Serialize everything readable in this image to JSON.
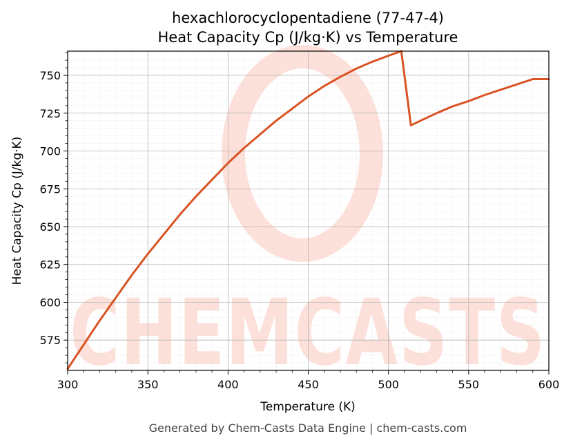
{
  "chart_data": {
    "type": "line",
    "title": "hexachlorocyclopentadiene (77-47-4)",
    "subtitle": "Heat Capacity Cp (J/kg·K) vs Temperature",
    "xlabel": "Temperature (K)",
    "ylabel": "Heat Capacity Cp (J/kg·K)",
    "xlim": [
      300,
      600
    ],
    "ylim": [
      555,
      766
    ],
    "xticks": [
      300,
      350,
      400,
      450,
      500,
      550,
      600
    ],
    "yticks": [
      575,
      600,
      625,
      650,
      675,
      700,
      725,
      750
    ],
    "grid": true,
    "series": [
      {
        "color": "#d95323",
        "x": [
          300,
          310,
          320,
          330,
          340,
          350,
          360,
          370,
          380,
          390,
          400,
          410,
          420,
          430,
          440,
          450,
          460,
          470,
          480,
          490,
          500,
          508,
          514,
          520,
          530,
          540,
          550,
          560,
          570,
          580,
          590,
          600
        ],
        "y": [
          556,
          572,
          588,
          603,
          618,
          632,
          645,
          658,
          670,
          681,
          692,
          702,
          711,
          720,
          728,
          736,
          743,
          749,
          754.5,
          759,
          763,
          766,
          717,
          720,
          725,
          729.5,
          733,
          737,
          740.5,
          744,
          747.5,
          747.5
        ]
      }
    ]
  },
  "watermark": {
    "text": "CHEMCASTS",
    "color": "#fde0d9"
  },
  "footer": "Generated by Chem-Casts Data Engine | chem-casts.com"
}
